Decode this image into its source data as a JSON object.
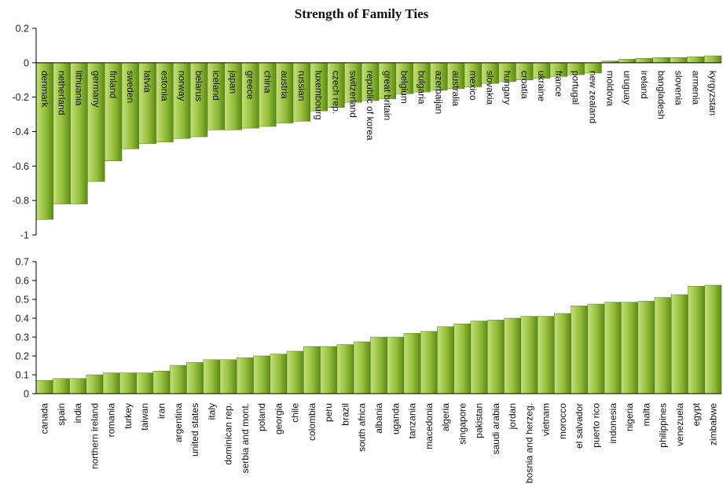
{
  "title": "Strength of Family Ties",
  "colors": {
    "bar_light": "#c4e07a",
    "bar_mid": "#93bd3a",
    "bar_dark": "#5d8a18",
    "axis": "#000000"
  },
  "chart_data": [
    {
      "type": "bar",
      "title": "Strength of Family Ties",
      "ylim": [
        -1,
        0.2
      ],
      "yticks": [
        "0.2",
        "0",
        "-0.2",
        "-0.4",
        "-0.6",
        "-0.8",
        "-1"
      ],
      "categories": [
        "denmark",
        "netherland",
        "lithuania",
        "germany",
        "finland",
        "sweden",
        "latvia",
        "estonia",
        "norway",
        "belarus",
        "iceland",
        "japan",
        "greece",
        "china",
        "austria",
        "russian",
        "luxembourg",
        "czech rep.",
        "switzerland",
        "republic of korea",
        "great britain",
        "belgium",
        "bulgaria",
        "azerbaijan",
        "australia",
        "mexico",
        "slovakia",
        "hungary",
        "croatia",
        "ukraine",
        "france",
        "portugal",
        "new zealand",
        "moldova",
        "uruguay",
        "ireland",
        "bangladesh",
        "slovenia",
        "armenia",
        "kyrgyzstan"
      ],
      "values": [
        -0.91,
        -0.82,
        -0.82,
        -0.69,
        -0.57,
        -0.5,
        -0.47,
        -0.46,
        -0.44,
        -0.43,
        -0.39,
        -0.39,
        -0.38,
        -0.37,
        -0.35,
        -0.34,
        -0.28,
        -0.26,
        -0.23,
        -0.22,
        -0.21,
        -0.18,
        -0.17,
        -0.16,
        -0.15,
        -0.14,
        -0.12,
        -0.11,
        -0.1,
        -0.09,
        -0.08,
        -0.07,
        -0.06,
        0.01,
        0.02,
        0.025,
        0.03,
        0.03,
        0.035,
        0.04
      ]
    },
    {
      "type": "bar",
      "ylim": [
        0,
        0.7
      ],
      "yticks": [
        "0.7",
        "0.6",
        "0.5",
        "0.4",
        "0.3",
        "0.2",
        "0.1",
        "0"
      ],
      "categories": [
        "canada",
        "spain",
        "india",
        "northern ireland",
        "romania",
        "turkey",
        "taiwan",
        "iran",
        "argentina",
        "united states",
        "italy",
        "dominican rep.",
        "serbia and mont.",
        "poland",
        "georgia",
        "chile",
        "colombia",
        "peru",
        "brazil",
        "south africa",
        "albania",
        "uganda",
        "tanzania",
        "macedonia",
        "algeria",
        "singapore",
        "pakistan",
        "saudi arabia",
        "jordan",
        "bosnia and herzeg.",
        "vietnam",
        "morocco",
        "el salvador",
        "puerto rico",
        "indonesia",
        "nigeria",
        "malta",
        "philippines",
        "venezuela",
        "egypt",
        "zimbabwe"
      ],
      "values": [
        0.07,
        0.08,
        0.08,
        0.1,
        0.11,
        0.11,
        0.11,
        0.12,
        0.15,
        0.165,
        0.18,
        0.18,
        0.19,
        0.2,
        0.21,
        0.225,
        0.25,
        0.25,
        0.26,
        0.275,
        0.3,
        0.3,
        0.32,
        0.33,
        0.355,
        0.37,
        0.385,
        0.39,
        0.4,
        0.41,
        0.41,
        0.425,
        0.465,
        0.475,
        0.485,
        0.485,
        0.49,
        0.51,
        0.525,
        0.57,
        0.575
      ]
    }
  ]
}
